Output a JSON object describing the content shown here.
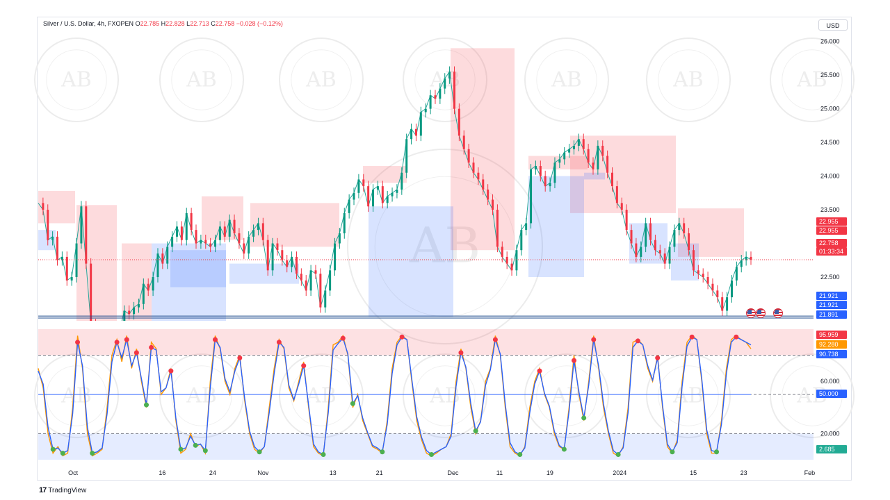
{
  "header": {
    "symbol": "Silver / U.S. Dollar, 4h, FXOPEN",
    "open_label": "O",
    "open": "22.785",
    "high_label": "H",
    "high": "22.828",
    "low_label": "L",
    "low": "22.713",
    "close_label": "C",
    "close": "22.758",
    "change": "−0.028 (−0.12%)"
  },
  "currency_button": "USD",
  "branding": {
    "logo_text": "TradingView",
    "logo_mark": "17"
  },
  "watermark": {
    "text": "AB",
    "ring_text": "ARABIAN BUSINESS ACADEMY"
  },
  "chart_data": [
    {
      "type": "line",
      "title": "Silver / U.S. Dollar, 4h, FXOPEN",
      "y_ticks": [
        "26.000",
        "25.500",
        "25.000",
        "24.500",
        "24.000",
        "23.500",
        "23.000",
        "22.500"
      ],
      "ylim": [
        21.85,
        26.1
      ],
      "x_ticks": [
        "Oct",
        "16",
        "24",
        "Nov",
        "13",
        "21",
        "Dec",
        "11",
        "19",
        "2024",
        "15",
        "23",
        "Feb"
      ],
      "x_tick_positions": [
        0.045,
        0.16,
        0.225,
        0.29,
        0.38,
        0.44,
        0.535,
        0.595,
        0.66,
        0.75,
        0.845,
        0.91,
        0.995
      ],
      "price_labels": [
        {
          "value": "22.955",
          "color": "#f23645"
        },
        {
          "value": "22.955",
          "color": "#f23645"
        },
        {
          "value": "22.758",
          "color": "#f23645"
        },
        {
          "value": "01:33:34",
          "color": "#f23645"
        },
        {
          "value": "21.921",
          "color": "#2962ff"
        },
        {
          "value": "21.921",
          "color": "#2962ff"
        },
        {
          "value": "21.891",
          "color": "#2962ff"
        }
      ],
      "close_series": [
        23.6,
        23.5,
        23.05,
        23.1,
        22.75,
        22.8,
        22.45,
        22.5,
        23.0,
        23.55,
        22.7,
        21.8,
        21.6,
        21.5,
        21.55,
        21.5,
        21.6,
        21.7,
        22.0,
        21.95,
        22.05,
        22.1,
        22.4,
        22.3,
        22.5,
        22.85,
        22.7,
        22.95,
        23.1,
        23.25,
        23.05,
        23.45,
        23.2,
        23.0,
        23.05,
        23.0,
        22.95,
        23.05,
        23.25,
        23.1,
        23.35,
        23.15,
        23.0,
        22.85,
        23.1,
        23.2,
        23.3,
        23.05,
        22.6,
        23.0,
        22.9,
        22.75,
        22.65,
        22.8,
        22.55,
        22.45,
        22.3,
        22.6,
        22.55,
        22.05,
        22.3,
        22.6,
        23.0,
        23.15,
        23.45,
        23.65,
        23.75,
        23.95,
        23.85,
        23.55,
        23.8,
        23.85,
        23.6,
        23.7,
        23.75,
        23.8,
        24.05,
        24.55,
        24.7,
        24.6,
        24.95,
        25.0,
        25.2,
        25.15,
        25.3,
        25.45,
        25.55,
        25.0,
        24.6,
        24.4,
        24.2,
        24.05,
        23.95,
        23.8,
        23.65,
        23.5,
        22.95,
        22.8,
        22.7,
        22.6,
        22.9,
        23.2,
        23.3,
        24.1,
        24.15,
        24.0,
        23.85,
        23.9,
        24.2,
        24.25,
        24.35,
        24.4,
        24.45,
        24.55,
        24.4,
        24.2,
        24.1,
        24.45,
        24.3,
        24.05,
        23.85,
        23.6,
        23.5,
        23.2,
        23.0,
        22.8,
        22.95,
        23.3,
        23.05,
        22.9,
        22.85,
        22.7,
        22.95,
        23.2,
        23.3,
        23.15,
        22.9,
        22.6,
        22.55,
        22.5,
        22.4,
        22.3,
        22.2,
        22.0,
        22.2,
        22.45,
        22.65,
        22.75,
        22.8,
        22.76
      ],
      "support_levels": [
        21.921,
        21.891
      ]
    },
    {
      "type": "line",
      "title": "",
      "y_ticks": [
        "60.000",
        "20.000"
      ],
      "ylim": [
        0,
        100
      ],
      "levels": [
        80,
        50,
        20
      ],
      "value_labels": [
        {
          "value": "95.959",
          "color": "#f23645"
        },
        {
          "value": "92.280",
          "color": "#ff9800"
        },
        {
          "value": "90.738",
          "color": "#2962ff"
        },
        {
          "value": "50.000",
          "color": "#2962ff"
        },
        {
          "value": "2.685",
          "color": "#22ab94"
        }
      ],
      "series": [
        {
          "color": "#ff9800",
          "values": [
            70,
            55,
            20,
            5,
            10,
            3,
            5,
            40,
            95,
            70,
            20,
            3,
            5,
            8,
            40,
            80,
            92,
            75,
            95,
            70,
            85,
            60,
            40,
            90,
            85,
            50,
            55,
            70,
            30,
            5,
            8,
            20,
            10,
            12,
            5,
            60,
            95,
            85,
            60,
            50,
            70,
            80,
            45,
            20,
            8,
            5,
            10,
            40,
            70,
            92,
            85,
            55,
            45,
            60,
            75,
            40,
            10,
            5,
            3,
            40,
            88,
            90,
            95,
            80,
            40,
            50,
            30,
            20,
            10,
            8,
            5,
            30,
            70,
            90,
            95,
            92,
            60,
            30,
            15,
            5,
            3,
            5,
            8,
            10,
            20,
            60,
            85,
            70,
            40,
            20,
            30,
            60,
            70,
            95,
            80,
            40,
            10,
            5,
            3,
            10,
            40,
            60,
            70,
            50,
            40,
            20,
            10,
            8,
            40,
            80,
            50,
            30,
            60,
            95,
            70,
            40,
            20,
            5,
            3,
            10,
            40,
            90,
            92,
            88,
            70,
            60,
            80,
            40,
            10,
            5,
            15,
            60,
            90,
            95,
            92,
            60,
            20,
            5,
            5,
            30,
            70,
            92,
            95,
            92,
            90,
            85
          ]
        },
        {
          "color": "#2962ff",
          "values": [
            68,
            58,
            25,
            8,
            9,
            5,
            7,
            35,
            90,
            72,
            25,
            5,
            6,
            9,
            35,
            75,
            90,
            78,
            92,
            72,
            82,
            62,
            42,
            86,
            84,
            52,
            55,
            68,
            32,
            8,
            9,
            18,
            11,
            12,
            7,
            55,
            92,
            86,
            62,
            52,
            68,
            78,
            47,
            22,
            10,
            6,
            10,
            36,
            66,
            90,
            86,
            57,
            46,
            58,
            72,
            42,
            12,
            6,
            4,
            36,
            84,
            89,
            93,
            81,
            43,
            49,
            32,
            21,
            11,
            9,
            6,
            27,
            66,
            88,
            94,
            92,
            62,
            33,
            17,
            7,
            4,
            6,
            8,
            10,
            18,
            56,
            82,
            71,
            43,
            22,
            29,
            57,
            69,
            92,
            81,
            43,
            13,
            6,
            4,
            9,
            36,
            58,
            68,
            51,
            41,
            22,
            11,
            8,
            37,
            76,
            52,
            32,
            57,
            92,
            72,
            43,
            22,
            7,
            4,
            9,
            36,
            86,
            91,
            88,
            72,
            61,
            78,
            42,
            12,
            6,
            13,
            56,
            87,
            94,
            92,
            62,
            23,
            7,
            6,
            27,
            66,
            90,
            94,
            92,
            90,
            88
          ]
        }
      ]
    }
  ]
}
